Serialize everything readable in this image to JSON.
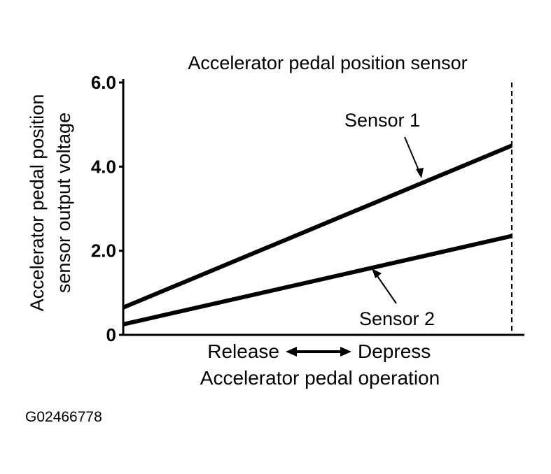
{
  "chart_data": {
    "type": "line",
    "title": "Accelerator pedal position sensor",
    "ylabel_lines": [
      "Accelerator pedal position",
      "sensor output voltage"
    ],
    "xlabel": "Accelerator pedal operation",
    "x_endpoints": {
      "left": "Release",
      "right": "Depress"
    },
    "ylim": [
      0,
      6.0
    ],
    "yticks": [
      {
        "value": 0,
        "label": "0"
      },
      {
        "value": 2.0,
        "label": "2.0"
      },
      {
        "value": 4.0,
        "label": "4.0"
      },
      {
        "value": 6.0,
        "label": "6.0"
      }
    ],
    "x": [
      0,
      1
    ],
    "series": [
      {
        "name": "Sensor 1",
        "values": [
          0.65,
          4.5
        ]
      },
      {
        "name": "Sensor 2",
        "values": [
          0.25,
          2.35
        ]
      }
    ],
    "grid": false,
    "reference_line": {
      "x": 1,
      "style": "dashed"
    }
  },
  "figure_id": "G02466778",
  "colors": {
    "line": "#000000",
    "background": "#ffffff"
  }
}
